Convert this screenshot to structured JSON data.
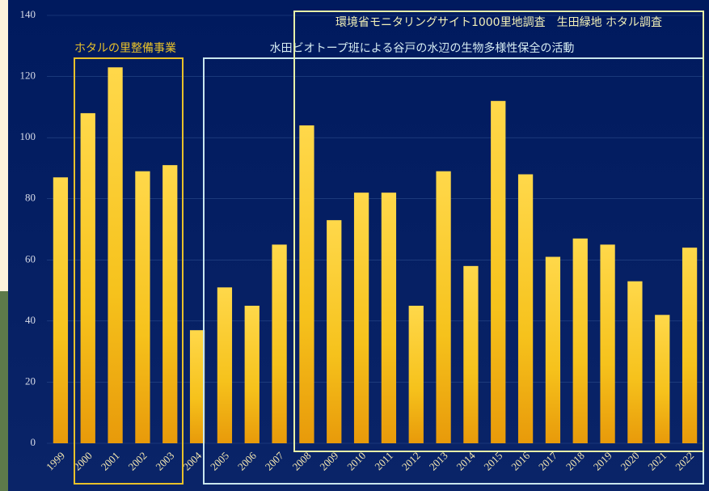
{
  "chart_data": {
    "type": "bar",
    "categories": [
      "1999",
      "2000",
      "2001",
      "2002",
      "2003",
      "2004",
      "2005",
      "2006",
      "2007",
      "2008",
      "2009",
      "2010",
      "2011",
      "2012",
      "2013",
      "2014",
      "2015",
      "2016",
      "2017",
      "2018",
      "2019",
      "2020",
      "2021",
      "2022"
    ],
    "values": [
      87,
      108,
      123,
      89,
      91,
      37,
      51,
      45,
      65,
      104,
      73,
      82,
      82,
      45,
      89,
      58,
      112,
      88,
      61,
      67,
      65,
      53,
      42,
      64
    ],
    "color": "#f6c21c",
    "ylim": [
      0,
      140
    ],
    "yticks": [
      0,
      20,
      40,
      60,
      80,
      100,
      120,
      140
    ],
    "grid": true,
    "annotations": [
      {
        "text": "ホタルの里整備事業",
        "color": "#e8c12a"
      },
      {
        "text": "水田ビオトープ班による谷戸の水辺の生物多様性保全の活動",
        "color": "#d6ecf2"
      },
      {
        "text": "環境省モニタリングサイト1000里地調査　生田緑地  ホタル調査",
        "color": "#f2f0b8"
      }
    ]
  }
}
